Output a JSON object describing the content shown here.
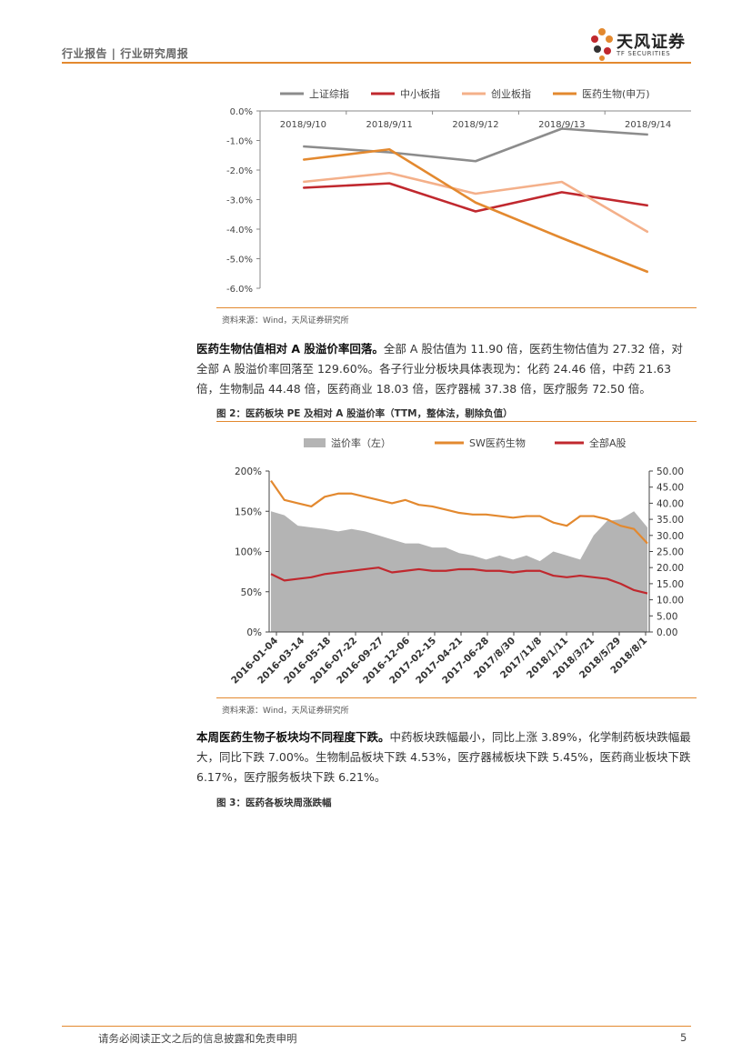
{
  "header": {
    "left_text": "行业报告 | 行业研究周报",
    "logo_cn": "天风证券",
    "logo_en": "TF SECURITIES",
    "accent_color": "#e3892f"
  },
  "chart_data": [
    {
      "type": "line",
      "title": "",
      "categories": [
        "2018/9/10",
        "2018/9/11",
        "2018/9/12",
        "2018/9/13",
        "2018/9/14"
      ],
      "series": [
        {
          "name": "上证综指",
          "color": "#8c8c8c",
          "values": [
            -1.2,
            -1.4,
            -1.7,
            -0.6,
            -0.8
          ]
        },
        {
          "name": "中小板指",
          "color": "#c0282e",
          "values": [
            -2.6,
            -2.45,
            -3.4,
            -2.75,
            -3.2
          ]
        },
        {
          "name": "创业板指",
          "color": "#f4b08a",
          "values": [
            -2.4,
            -2.1,
            -2.8,
            -2.4,
            -4.1
          ]
        },
        {
          "name": "医药生物(申万)",
          "color": "#e3892f",
          "values": [
            -1.65,
            -1.3,
            -3.1,
            -4.3,
            -5.45
          ]
        }
      ],
      "ylim": [
        -6,
        0
      ],
      "yticks": [
        "0.0%",
        "-1.0%",
        "-2.0%",
        "-3.0%",
        "-4.0%",
        "-5.0%",
        "-6.0%"
      ],
      "legend_position": "top",
      "source": "资料来源：Wind，天风证券研究所"
    },
    {
      "type": "area",
      "title": "",
      "x_ticks": [
        "2016-01-04",
        "2016-03-14",
        "2016-05-18",
        "2016-07-22",
        "2016-09-27",
        "2016-12-06",
        "2017-02-15",
        "2017-04-21",
        "2017-06-28",
        "2017/8/30",
        "2017/11/8",
        "2018/1/11",
        "2018/3/21",
        "2018/5/29",
        "2018/8/1"
      ],
      "series": [
        {
          "name": "溢价率（左）",
          "color": "#b4b4b4",
          "axis": "left",
          "values": [
            150,
            145,
            132,
            130,
            128,
            125,
            128,
            125,
            120,
            115,
            110,
            110,
            105,
            105,
            98,
            95,
            90,
            95,
            90,
            95,
            88,
            100,
            95,
            90,
            120,
            138,
            140,
            150,
            130
          ]
        },
        {
          "name": "SW医药生物",
          "color": "#e3892f",
          "axis": "right",
          "values": [
            47,
            41,
            40,
            39,
            42,
            43,
            43,
            42,
            41,
            40,
            41,
            39.5,
            39,
            38,
            37,
            36.5,
            36.5,
            36,
            35.5,
            36,
            36,
            34,
            33,
            36,
            36,
            35,
            33,
            32,
            27.5
          ]
        },
        {
          "name": "全部A股",
          "color": "#c0282e",
          "axis": "right",
          "values": [
            18,
            16,
            16.5,
            17,
            18,
            18.5,
            19,
            19.5,
            20,
            18.5,
            19,
            19.5,
            19,
            19,
            19.5,
            19.5,
            19,
            19,
            18.5,
            19,
            19,
            17.5,
            17,
            17.5,
            17,
            16.5,
            15,
            13,
            12
          ]
        }
      ],
      "y_left_ticks": [
        "0%",
        "50%",
        "100%",
        "150%",
        "200%"
      ],
      "y_left_lim": [
        0,
        200
      ],
      "y_right_ticks": [
        "0.00",
        "5.00",
        "10.00",
        "15.00",
        "20.00",
        "25.00",
        "30.00",
        "35.00",
        "40.00",
        "45.00",
        "50.00"
      ],
      "y_right_lim": [
        0,
        50
      ],
      "legend_position": "top",
      "source": "资料来源：Wind，天风证券研究所"
    }
  ],
  "para1": {
    "bold": "医药生物估值相对 A 股溢价率回落。",
    "text": "全部 A 股估值为 11.90 倍，医药生物估值为 27.32 倍，对全部 A 股溢价率回落至 129.60%。各子行业分板块具体表现为：化药 24.46 倍，中药 21.63 倍，生物制品 44.48 倍，医药商业 18.03 倍，医疗器械 37.38 倍，医疗服务 72.50 倍。"
  },
  "fig2_title": "图 2：医药板块 PE 及相对 A 股溢价率（TTM，整体法，剔除负值）",
  "para2": {
    "bold": "本周医药生物子板块均不同程度下跌。",
    "text": "中药板块跌幅最小，同比上涨 3.89%，化学制药板块跌幅最大，同比下跌 7.00%。生物制品板块下跌 4.53%，医疗器械板块下跌 5.45%，医药商业板块下跌 6.17%，医疗服务板块下跌 6.21%。"
  },
  "fig3_title": "图 3：医药各板块周涨跌幅",
  "footer": {
    "text": "请务必阅读正文之后的信息披露和免责申明",
    "page": "5"
  }
}
